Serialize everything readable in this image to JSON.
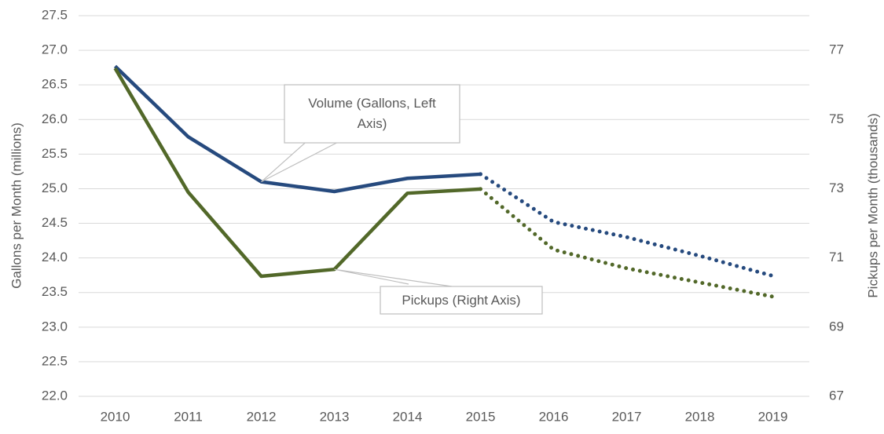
{
  "chart_data": {
    "type": "line",
    "categories": [
      "2010",
      "2011",
      "2012",
      "2013",
      "2014",
      "2015",
      "2016",
      "2017",
      "2018",
      "2019"
    ],
    "dotted_from": "2015",
    "series": [
      {
        "name": "Volume",
        "color": "#264a7e",
        "values": [
          26.77,
          25.75,
          25.1,
          24.96,
          25.15,
          25.21,
          24.52,
          24.3,
          24.03,
          23.74
        ]
      },
      {
        "name": "Pickups",
        "color": "#526829",
        "axis": "y2",
        "values": [
          76.48,
          72.9,
          70.47,
          70.67,
          72.87,
          72.99,
          71.24,
          70.7,
          70.29,
          69.88
        ]
      }
    ],
    "ylabel": "Gallons per Month (millions)",
    "y2label": "Pickups per Month (thousands)",
    "ylim": [
      22,
      27.5
    ],
    "yticks": [
      {
        "value": 22,
        "label": "22.0"
      },
      22.5,
      {
        "value": 23,
        "label": "23.0"
      },
      23.5,
      {
        "value": 24,
        "label": "24.0"
      },
      24.5,
      {
        "value": 25,
        "label": "25.0"
      },
      25.5,
      {
        "value": 26,
        "label": "26.0"
      },
      26.5,
      {
        "value": 27,
        "label": "27.0"
      },
      27.5
    ],
    "y2lim": [
      67,
      78
    ],
    "y2ticks": [
      67,
      69,
      71,
      73,
      75,
      77
    ],
    "grid": true,
    "annotations": [
      {
        "text": "Volume (Gallons, Left Axis)",
        "category": "2012",
        "series": "Volume"
      },
      {
        "text": "Pickups (Right Axis)",
        "category": "2013",
        "series": "Pickups"
      }
    ]
  }
}
